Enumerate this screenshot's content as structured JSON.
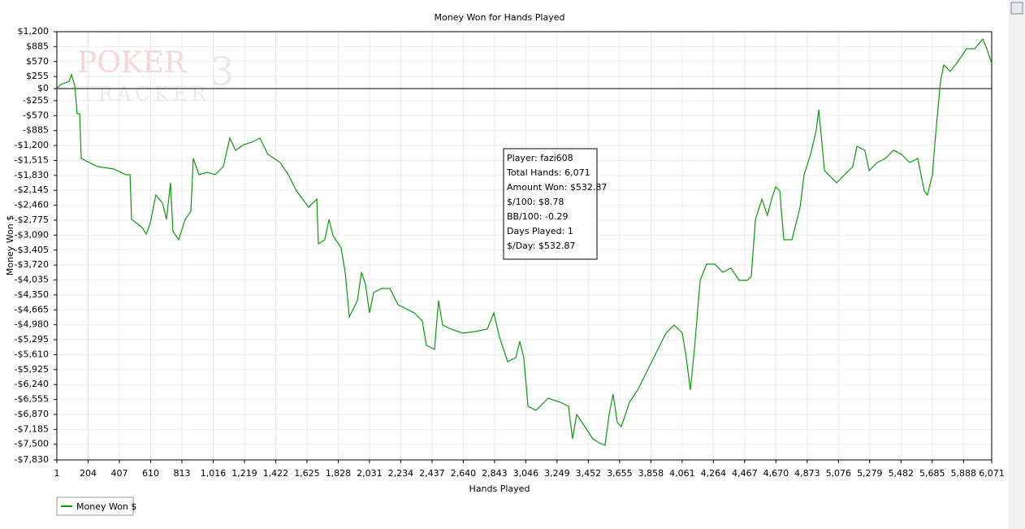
{
  "chart_data": {
    "type": "line",
    "title": "Money Won for Hands Played",
    "xlabel": "Hands Played",
    "ylabel": "Money Won $",
    "watermark": [
      "POKER",
      "TRACKER",
      "3"
    ],
    "tooltip": [
      "Player: fazi608",
      "Total Hands: 6,071",
      "Amount Won: $532.87",
      "$/100: $8.78",
      "BB/100: -0.29",
      "Days Played: 1",
      "$/Day: $532.87"
    ],
    "grid": true,
    "legend": "bottom-left",
    "xlim": [
      1,
      6071
    ],
    "ylim": [
      -7830,
      1200
    ],
    "xticks": [
      1,
      204,
      407,
      610,
      813,
      {
        "value": 1016,
        "label": "1,016"
      },
      {
        "value": 1219,
        "label": "1,219"
      },
      {
        "value": 1422,
        "label": "1,422"
      },
      {
        "value": 1625,
        "label": "1,625"
      },
      {
        "value": 1828,
        "label": "1,828"
      },
      {
        "value": 2031,
        "label": "2,031"
      },
      {
        "value": 2234,
        "label": "2,234"
      },
      {
        "value": 2437,
        "label": "2,437"
      },
      {
        "value": 2640,
        "label": "2,640"
      },
      {
        "value": 2843,
        "label": "2,843"
      },
      {
        "value": 3046,
        "label": "3,046"
      },
      {
        "value": 3249,
        "label": "3,249"
      },
      {
        "value": 3452,
        "label": "3,452"
      },
      {
        "value": 3655,
        "label": "3,655"
      },
      {
        "value": 3858,
        "label": "3,858"
      },
      {
        "value": 4061,
        "label": "4,061"
      },
      {
        "value": 4264,
        "label": "4,264"
      },
      {
        "value": 4467,
        "label": "4,467"
      },
      {
        "value": 4670,
        "label": "4,670"
      },
      {
        "value": 4873,
        "label": "4,873"
      },
      {
        "value": 5076,
        "label": "5,076"
      },
      {
        "value": 5279,
        "label": "5,279"
      },
      {
        "value": 5482,
        "label": "5,482"
      },
      {
        "value": 5685,
        "label": "5,685"
      },
      {
        "value": 5888,
        "label": "5,888"
      },
      {
        "value": 6071,
        "label": "6,071"
      }
    ],
    "yticks": [
      {
        "value": 1200,
        "label": "$1,200"
      },
      {
        "value": 885,
        "label": "$885"
      },
      {
        "value": 570,
        "label": "$570"
      },
      {
        "value": 255,
        "label": "$255"
      },
      {
        "value": 0,
        "label": "$0"
      },
      {
        "value": -255,
        "label": "-$255"
      },
      {
        "value": -570,
        "label": "-$570"
      },
      {
        "value": -885,
        "label": "-$885"
      },
      {
        "value": -1200,
        "label": "-$1,200"
      },
      {
        "value": -1515,
        "label": "-$1,515"
      },
      {
        "value": -1830,
        "label": "-$1,830"
      },
      {
        "value": -2145,
        "label": "-$2,145"
      },
      {
        "value": -2460,
        "label": "-$2,460"
      },
      {
        "value": -2775,
        "label": "-$2,775"
      },
      {
        "value": -3090,
        "label": "-$3,090"
      },
      {
        "value": -3405,
        "label": "-$3,405"
      },
      {
        "value": -3720,
        "label": "-$3,720"
      },
      {
        "value": -4035,
        "label": "-$4,035"
      },
      {
        "value": -4350,
        "label": "-$4,350"
      },
      {
        "value": -4665,
        "label": "-$4,665"
      },
      {
        "value": -4980,
        "label": "-$4,980"
      },
      {
        "value": -5295,
        "label": "-$5,295"
      },
      {
        "value": -5610,
        "label": "-$5,610"
      },
      {
        "value": -5925,
        "label": "-$5,925"
      },
      {
        "value": -6240,
        "label": "-$6,240"
      },
      {
        "value": -6555,
        "label": "-$6,555"
      },
      {
        "value": -6870,
        "label": "-$6,870"
      },
      {
        "value": -7185,
        "label": "-$7,185"
      },
      {
        "value": -7500,
        "label": "-$7,500"
      },
      {
        "value": -7830,
        "label": "-$7,830"
      }
    ],
    "x": [
      1,
      27,
      80,
      96,
      117,
      133,
      149,
      159,
      212,
      265,
      370,
      449,
      476,
      486,
      555,
      581,
      607,
      644,
      687,
      713,
      739,
      755,
      792,
      834,
      871,
      887,
      924,
      977,
      1029,
      1082,
      1124,
      1161,
      1214,
      1267,
      1319,
      1372,
      1451,
      1504,
      1557,
      1636,
      1689,
      1699,
      1741,
      1768,
      1794,
      1847,
      1873,
      1900,
      1952,
      1979,
      2005,
      2031,
      2058,
      2110,
      2163,
      2216,
      2321,
      2374,
      2400,
      2453,
      2479,
      2506,
      2559,
      2638,
      2717,
      2796,
      2838,
      2875,
      2928,
      2981,
      3007,
      3033,
      3060,
      3112,
      3191,
      3270,
      3323,
      3349,
      3376,
      3429,
      3481,
      3523,
      3560,
      3587,
      3613,
      3640,
      3666,
      3719,
      3772,
      3851,
      3903,
      3956,
      4009,
      4062,
      4088,
      4114,
      4141,
      4178,
      4220,
      4273,
      4325,
      4378,
      4431,
      4484,
      4510,
      4537,
      4579,
      4615,
      4642,
      4668,
      4695,
      4721,
      4774,
      4827,
      4853,
      4895,
      4932,
      4948,
      4985,
      5064,
      5116,
      5169,
      5196,
      5248,
      5275,
      5327,
      5380,
      5433,
      5486,
      5538,
      5591,
      5633,
      5654,
      5686,
      5707,
      5739,
      5760,
      5802,
      5855,
      5907,
      5960,
      6013,
      6039,
      6071
    ],
    "series": [
      {
        "name": "Money Won $",
        "color": "#0a9a0a",
        "values": [
          0,
          86,
          155,
          292,
          69,
          -531,
          -531,
          -1473,
          -1559,
          -1644,
          -1696,
          -1816,
          -1816,
          -2758,
          -2930,
          -3067,
          -2844,
          -2244,
          -2415,
          -2758,
          -1987,
          -3015,
          -3187,
          -2758,
          -2587,
          -1473,
          -1816,
          -1764,
          -1816,
          -1644,
          -1045,
          -1302,
          -1182,
          -1130,
          -1045,
          -1387,
          -1559,
          -1816,
          -2158,
          -2501,
          -2330,
          -3272,
          -3187,
          -2758,
          -3101,
          -3358,
          -3872,
          -4814,
          -4472,
          -3872,
          -4129,
          -4729,
          -4300,
          -4215,
          -4215,
          -4557,
          -4729,
          -4900,
          -5414,
          -5500,
          -4472,
          -4986,
          -5072,
          -5157,
          -5123,
          -5072,
          -4729,
          -5243,
          -5757,
          -5671,
          -5329,
          -5671,
          -6699,
          -6785,
          -6528,
          -6614,
          -6699,
          -7385,
          -6871,
          -7128,
          -7385,
          -7470,
          -7522,
          -6871,
          -6442,
          -7042,
          -7128,
          -6614,
          -6357,
          -5843,
          -5500,
          -5157,
          -4986,
          -5157,
          -5671,
          -6357,
          -5500,
          -4043,
          -3701,
          -3701,
          -3872,
          -3786,
          -4043,
          -4043,
          -3958,
          -2758,
          -2330,
          -2673,
          -2330,
          -2073,
          -2158,
          -3187,
          -3187,
          -2501,
          -1816,
          -1387,
          -873,
          -445,
          -1730,
          -1987,
          -1816,
          -1644,
          -1216,
          -1302,
          -1730,
          -1559,
          -1473,
          -1302,
          -1387,
          -1559,
          -1473,
          -2158,
          -2244,
          -1816,
          -959,
          155,
          497,
          360,
          583,
          840,
          840,
          1046,
          840,
          532.87
        ]
      }
    ]
  }
}
